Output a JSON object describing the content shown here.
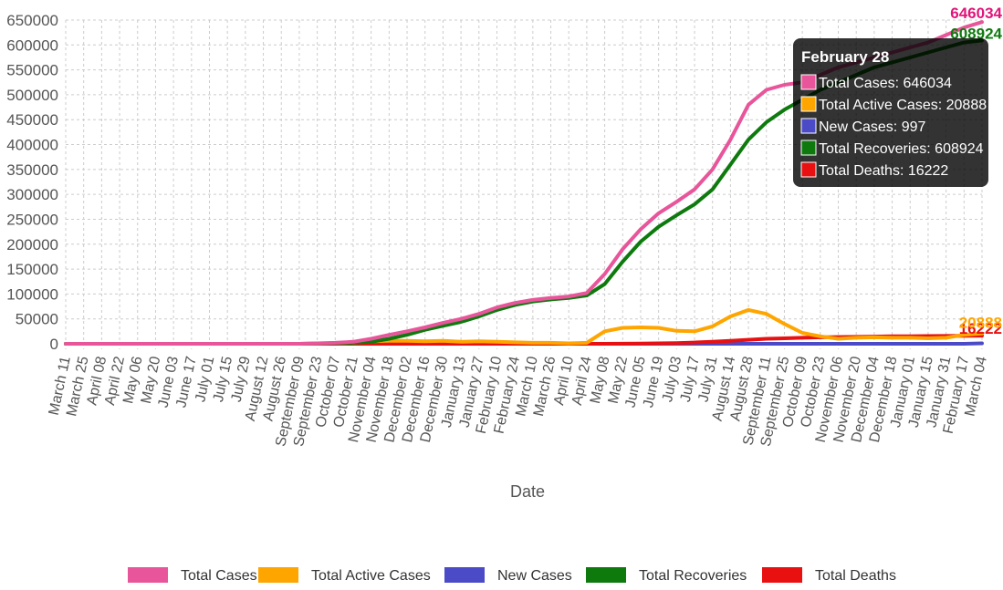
{
  "chart_data": {
    "type": "line",
    "xlabel": "Date",
    "ylabel": "",
    "ylim": [
      0,
      650000
    ],
    "y_ticks": [
      0,
      50000,
      100000,
      150000,
      200000,
      250000,
      300000,
      350000,
      400000,
      450000,
      500000,
      550000,
      600000,
      650000
    ],
    "grid": true,
    "legend_position": "bottom",
    "categories": [
      "March 11",
      "March 25",
      "April 08",
      "April 22",
      "May 06",
      "May 20",
      "June 03",
      "June 17",
      "July 01",
      "July 15",
      "July 29",
      "August 12",
      "August 26",
      "September 09",
      "September 23",
      "October 07",
      "October 21",
      "November 04",
      "November 18",
      "December 02",
      "December 16",
      "December 30",
      "January 13",
      "January 27",
      "February 10",
      "February 24",
      "March 10",
      "March 26",
      "April 10",
      "April 24",
      "May 08",
      "May 22",
      "June 05",
      "June 19",
      "July 03",
      "July 17",
      "July 31",
      "August 14",
      "August 28",
      "September 11",
      "September 25",
      "October 09",
      "October 23",
      "November 06",
      "November 20",
      "December 04",
      "December 18",
      "January 01",
      "January 15",
      "January 31",
      "February 17",
      "March 04"
    ],
    "series": [
      {
        "name": "Total Cases",
        "color": "#e8559a",
        "values": [
          0,
          0,
          0,
          0,
          0,
          0,
          0,
          0,
          0,
          0,
          0,
          0,
          0,
          0,
          1000,
          2000,
          4000,
          10000,
          18000,
          25000,
          33000,
          42000,
          50000,
          60000,
          73000,
          82000,
          88000,
          92000,
          95000,
          102000,
          140000,
          190000,
          230000,
          262000,
          285000,
          310000,
          350000,
          410000,
          480000,
          510000,
          520000,
          525000,
          540000,
          555000,
          565000,
          575000,
          585000,
          595000,
          605000,
          620000,
          635000,
          646034
        ]
      },
      {
        "name": "Total Active Cases",
        "color": "#ffa500",
        "values": [
          0,
          0,
          0,
          0,
          0,
          0,
          0,
          0,
          0,
          0,
          0,
          0,
          0,
          0,
          500,
          1000,
          2000,
          5000,
          6000,
          6000,
          5000,
          6000,
          4000,
          5000,
          4000,
          3000,
          2000,
          2000,
          1000,
          2000,
          25000,
          32000,
          33000,
          32000,
          26000,
          25000,
          35000,
          55000,
          68000,
          60000,
          40000,
          22000,
          15000,
          10000,
          12000,
          13000,
          12000,
          12000,
          11000,
          12000,
          18000,
          20888
        ]
      },
      {
        "name": "New Cases",
        "color": "#4b4bc8",
        "values": [
          0,
          0,
          0,
          0,
          0,
          0,
          0,
          0,
          0,
          0,
          0,
          0,
          0,
          0,
          0,
          0,
          0,
          0,
          0,
          0,
          0,
          0,
          0,
          0,
          0,
          0,
          0,
          0,
          0,
          0,
          0,
          0,
          0,
          0,
          0,
          0,
          0,
          0,
          0,
          0,
          0,
          0,
          0,
          0,
          0,
          0,
          0,
          0,
          0,
          0,
          0,
          997
        ]
      },
      {
        "name": "Total Recoveries",
        "color": "#0e7a0e",
        "values": [
          0,
          0,
          0,
          0,
          0,
          0,
          0,
          0,
          0,
          0,
          0,
          0,
          0,
          0,
          500,
          1000,
          2000,
          4000,
          10000,
          18000,
          28000,
          36000,
          44000,
          55000,
          68000,
          78000,
          85000,
          89000,
          92000,
          97000,
          120000,
          165000,
          205000,
          235000,
          258000,
          280000,
          310000,
          360000,
          410000,
          445000,
          470000,
          490000,
          510000,
          525000,
          540000,
          555000,
          565000,
          575000,
          585000,
          595000,
          605000,
          608924
        ]
      },
      {
        "name": "Total Deaths",
        "color": "#e81010",
        "values": [
          0,
          0,
          0,
          0,
          0,
          0,
          0,
          0,
          0,
          0,
          0,
          0,
          0,
          0,
          0,
          0,
          0,
          0,
          0,
          0,
          0,
          0,
          0,
          0,
          0,
          0,
          0,
          0,
          0,
          0,
          0,
          200,
          500,
          1000,
          1500,
          2500,
          4000,
          6000,
          8000,
          10000,
          11000,
          12000,
          13000,
          13500,
          14000,
          14500,
          15000,
          15200,
          15500,
          15800,
          16000,
          16222
        ]
      }
    ],
    "end_labels": [
      {
        "text": "646034",
        "color": "#e0147a"
      },
      {
        "text": "608924",
        "color": "#0e7a0e"
      },
      {
        "text": "16222",
        "color": "#e81010"
      },
      {
        "text": "20888",
        "color": "#ffa500"
      }
    ],
    "tooltip": {
      "title": "February 28",
      "lines": [
        {
          "text": "Total Cases: 646034",
          "color": "#e8559a"
        },
        {
          "text": "Total Active Cases: 20888",
          "color": "#ffa500"
        },
        {
          "text": "New Cases: 997",
          "color": "#4b4bc8"
        },
        {
          "text": "Total Recoveries: 608924",
          "color": "#0e7a0e"
        },
        {
          "text": "Total Deaths: 16222",
          "color": "#e81010"
        }
      ]
    }
  }
}
